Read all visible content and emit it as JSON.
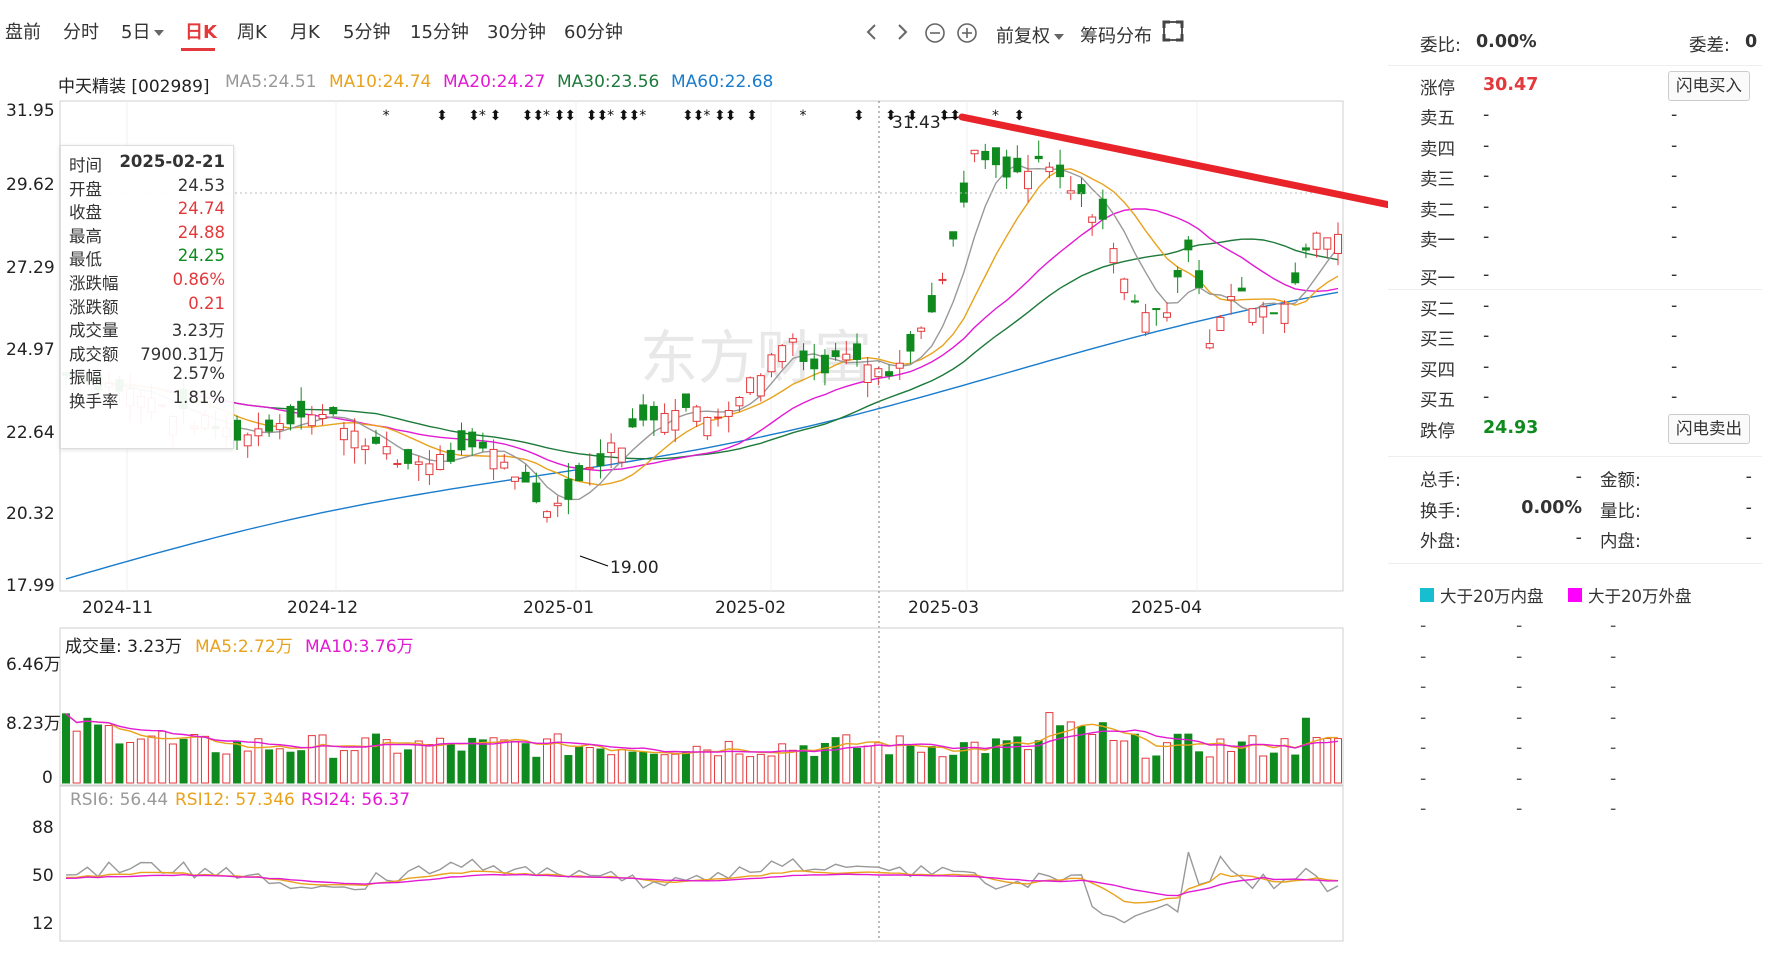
{
  "tabs": [
    "盘前",
    "分时",
    "5日",
    "日K",
    "周K",
    "月K",
    "5分钟",
    "15分钟",
    "30分钟",
    "60分钟"
  ],
  "active_tab": "日K",
  "toolbar": {
    "prev_icon": "chevron-left-icon",
    "next_icon": "chevron-right-icon",
    "zoom_out_icon": "zoom-out-icon",
    "zoom_in_icon": "zoom-in-icon",
    "adjust_label": "前复权",
    "chip_label": "筹码分布",
    "fullscreen_icon": "fullscreen-icon"
  },
  "stock": {
    "name_code": "中天精装 [002989]",
    "ma5": "MA5:24.51",
    "ma10": "MA10:24.74",
    "ma20": "MA20:24.27",
    "ma30": "MA30:23.56",
    "ma60": "MA60:22.68"
  },
  "price_axis": [
    "31.95",
    "29.62",
    "27.29",
    "24.97",
    "22.64",
    "20.32",
    "17.99"
  ],
  "date_axis": [
    "2024-11",
    "2024-12",
    "2025-01",
    "2025-02",
    "2025-03",
    "2025-04"
  ],
  "annotations": {
    "high": "31.43",
    "low": "19.00"
  },
  "watermark": "东方财富",
  "tooltip": {
    "rows": [
      {
        "k": "时间",
        "v": "2025-02-21"
      },
      {
        "k": "开盘",
        "v": "24.53"
      },
      {
        "k": "收盘",
        "v": "24.74"
      },
      {
        "k": "最高",
        "v": "24.88"
      },
      {
        "k": "最低",
        "v": "24.25"
      },
      {
        "k": "涨跌幅",
        "v": "0.86%"
      },
      {
        "k": "涨跌额",
        "v": "0.21"
      },
      {
        "k": "成交量",
        "v": "3.23万"
      },
      {
        "k": "成交额",
        "v": "7900.31万"
      },
      {
        "k": "振幅",
        "v": "2.57%"
      },
      {
        "k": "换手率",
        "v": "1.81%"
      }
    ]
  },
  "volume": {
    "label": "成交量: 3.23万",
    "ma5": "MA5:2.72万",
    "ma10": "MA10:3.76万",
    "axis": [
      "6.46万",
      "8.23万",
      "0"
    ]
  },
  "rsi": {
    "rsi6": "RSI6: 56.44",
    "rsi12": "RSI12: 57.346",
    "rsi24": "RSI24: 56.37",
    "axis": [
      "88",
      "50",
      "12"
    ]
  },
  "colors": {
    "up": "#e4393c",
    "down": "#0f8a1e",
    "ma5": "#999999",
    "ma10": "#e8a21c",
    "ma20": "#e21ad4",
    "ma30": "#1e7a3a",
    "ma60": "#1a7ccc",
    "trendline": "#e8232a"
  },
  "panel": {
    "weibi_label": "委比:",
    "weibi_value": "0.00%",
    "weicha_label": "委差:",
    "weicha_value": "0",
    "limit_up_label": "涨停",
    "limit_up_value": "30.47",
    "buy_btn": "闪电买入",
    "sell_rows": [
      "卖五",
      "卖四",
      "卖三",
      "卖二",
      "卖一"
    ],
    "buy_rows": [
      "买一",
      "买二",
      "买三",
      "买四",
      "买五"
    ],
    "dash": "-",
    "limit_down_label": "跌停",
    "limit_down_value": "24.93",
    "sell_btn": "闪电卖出",
    "stats": [
      {
        "k1": "总手:",
        "v1": "-",
        "k2": "金额:",
        "v2": "-"
      },
      {
        "k1": "换手:",
        "v1": "0.00%",
        "k2": "量比:",
        "v2": "-"
      },
      {
        "k1": "外盘:",
        "v1": "-",
        "k2": "内盘:",
        "v2": "-"
      }
    ],
    "legend_in": "大于20万内盘",
    "legend_out": "大于20万外盘",
    "legend_in_color": "#17bed0",
    "legend_out_color": "#ff00ff"
  }
}
